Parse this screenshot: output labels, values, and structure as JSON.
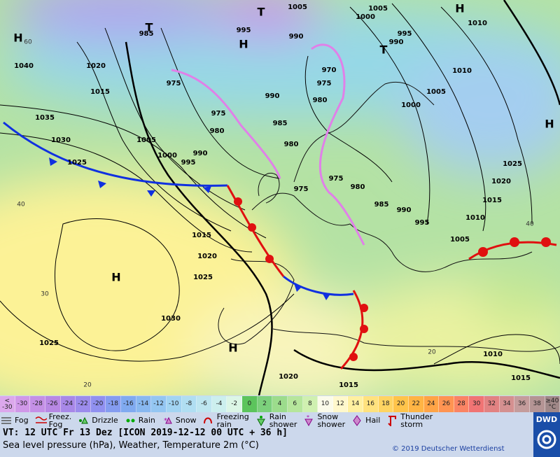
{
  "map": {
    "pressure_labels": [
      "1005",
      "1000",
      "1005",
      "995",
      "990",
      "985",
      "995",
      "990",
      "1010",
      "1040",
      "1020",
      "1015",
      "975",
      "970",
      "975",
      "990",
      "980",
      "975",
      "985",
      "980",
      "1010",
      "1005",
      "1000",
      "1035",
      "1030",
      "1005",
      "1000",
      "995",
      "990",
      "980",
      "1025",
      "975",
      "975",
      "980",
      "985",
      "990",
      "995",
      "1025",
      "1020",
      "1015",
      "1010",
      "1005",
      "1015",
      "1020",
      "1025",
      "1030",
      "1025",
      "1020",
      "1015",
      "1015",
      "1010"
    ],
    "temperature_labels": [
      "60",
      "40",
      "30",
      "20",
      "20",
      "40"
    ],
    "centers": [
      "H",
      "H",
      "H",
      "H",
      "H",
      "T",
      "T",
      "T",
      "H"
    ]
  },
  "legend": {
    "temperature_scale": [
      {
        "label": "<\n-30",
        "color": "#dca8ec"
      },
      {
        "label": "-30",
        "color": "#d098e8"
      },
      {
        "label": "-28",
        "color": "#c490e6"
      },
      {
        "label": "-26",
        "color": "#b888e4"
      },
      {
        "label": "-24",
        "color": "#a888e8"
      },
      {
        "label": "-22",
        "color": "#9c8cec"
      },
      {
        "label": "-20",
        "color": "#9090f0"
      },
      {
        "label": "-18",
        "color": "#849cf0"
      },
      {
        "label": "-16",
        "color": "#80aaf0"
      },
      {
        "label": "-14",
        "color": "#88b8f0"
      },
      {
        "label": "-12",
        "color": "#94c6f2"
      },
      {
        "label": "-10",
        "color": "#a2d4f2"
      },
      {
        "label": "-8",
        "color": "#b0def2"
      },
      {
        "label": "-6",
        "color": "#bee6f0"
      },
      {
        "label": "-4",
        "color": "#ccefee"
      },
      {
        "label": "-2",
        "color": "#dcf6e6"
      },
      {
        "label": "0",
        "color": "#5cc45c"
      },
      {
        "label": "2",
        "color": "#7cd07c"
      },
      {
        "label": "4",
        "color": "#9cdc8c"
      },
      {
        "label": "6",
        "color": "#b6e69c"
      },
      {
        "label": "8",
        "color": "#cff0b0"
      },
      {
        "label": "10",
        "color": "#fbfbea"
      },
      {
        "label": "12",
        "color": "#fff8cc"
      },
      {
        "label": "14",
        "color": "#fff0a0"
      },
      {
        "label": "16",
        "color": "#ffe27e"
      },
      {
        "label": "18",
        "color": "#ffd462"
      },
      {
        "label": "20",
        "color": "#ffc44a"
      },
      {
        "label": "22",
        "color": "#ffb444"
      },
      {
        "label": "24",
        "color": "#ffa446"
      },
      {
        "label": "26",
        "color": "#ff9452"
      },
      {
        "label": "28",
        "color": "#fa8464"
      },
      {
        "label": "30",
        "color": "#f07474"
      },
      {
        "label": "32",
        "color": "#e28282"
      },
      {
        "label": "34",
        "color": "#d49090"
      },
      {
        "label": "36",
        "color": "#c49c9c"
      },
      {
        "label": "38",
        "color": "#b49494"
      },
      {
        "label": "≥40\n°C",
        "color": "#a08888"
      }
    ],
    "weather": [
      "Fog",
      "Freez.\nFog",
      "Drizzle",
      "Rain",
      "Snow",
      "Freezing\nrain",
      "Rain\nshower",
      "Snow\nshower",
      "Hail",
      "Thunder\nstorm"
    ]
  },
  "footer": {
    "valid_time": "VT: 12 UTC Fr  13 Dez [ICON 2019-12-12  00 UTC + 36 h]",
    "description": "Sea level pressure (hPa), Weather, Temperature 2m (°C)",
    "copyright": "© 2019 Deutscher Wetterdienst",
    "logo": "DWD"
  }
}
